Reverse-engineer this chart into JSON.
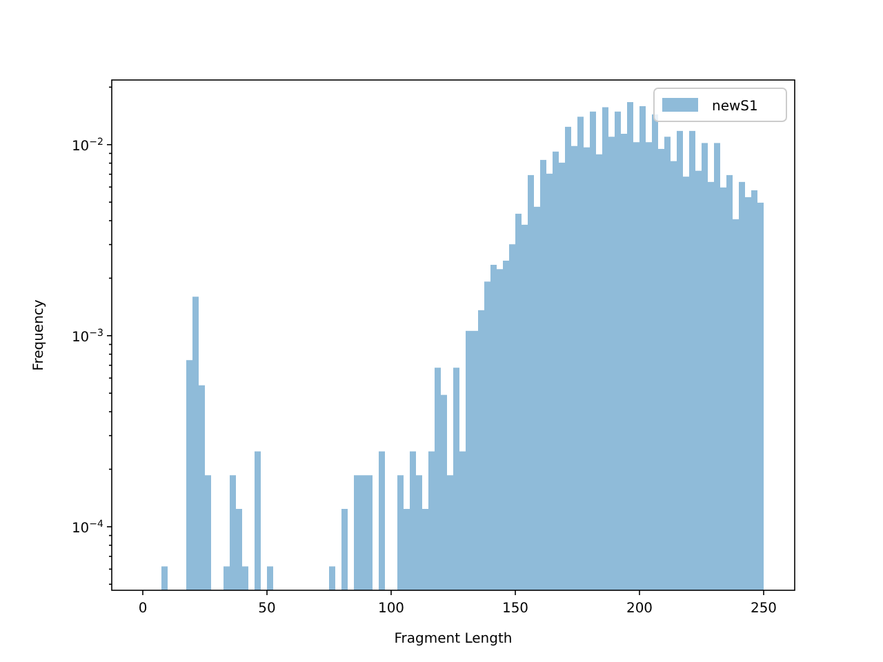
{
  "chart_data": {
    "type": "histogram",
    "xlabel": "Fragment Length",
    "ylabel": "Frequency",
    "log": "y",
    "legend": "top right",
    "bins": [
      7.5,
      10,
      17.5,
      20,
      22.5,
      25,
      27.5,
      32.5,
      35,
      37.5,
      40,
      42.5,
      45,
      47.5,
      50,
      52.5,
      75,
      77.5,
      80,
      82.5,
      85,
      87.5,
      90,
      92.5,
      95,
      97.5,
      102.5,
      105,
      107.5,
      110,
      112.5,
      115,
      117.5,
      120,
      122.5,
      125,
      127.5,
      130,
      132.5,
      135,
      137.5,
      140,
      142.5,
      145,
      147.5,
      150,
      152.5,
      155,
      157.5,
      160,
      162.5,
      165,
      167.5,
      170,
      172.5,
      175,
      177.5,
      180,
      182.5,
      185,
      187.5,
      190,
      192.5,
      195,
      197.5,
      200,
      202.5,
      205,
      207.5,
      210,
      212.5,
      215,
      217.5,
      220,
      222.5,
      225,
      227.5,
      230,
      232.5,
      235,
      237.5,
      240,
      242.5,
      245,
      247.5,
      250
    ],
    "series": [
      {
        "name": "newS1",
        "color": "#8fbbd9",
        "values": [
          6.2e-05,
          null,
          0.000745,
          0.0016,
          0.00055,
          0.000186,
          null,
          6.2e-05,
          0.000186,
          0.000124,
          6.2e-05,
          null,
          0.000248,
          null,
          6.2e-05,
          null,
          6.2e-05,
          null,
          0.000124,
          null,
          0.000186,
          0.000186,
          0.000186,
          null,
          0.000248,
          null,
          0.000186,
          0.000124,
          0.000248,
          0.000186,
          0.000124,
          0.000248,
          0.00068,
          0.00049,
          0.000186,
          0.00068,
          0.000248,
          0.00106,
          0.00106,
          0.00136,
          0.00192,
          0.00235,
          0.00223,
          0.00247,
          0.00301,
          0.00435,
          0.00381,
          0.00693,
          0.00473,
          0.00832,
          0.00705,
          0.0092,
          0.00805,
          0.0124,
          0.00984,
          0.014,
          0.00968,
          0.0149,
          0.0089,
          0.0157,
          0.011,
          0.0149,
          0.0114,
          0.0167,
          0.0103,
          0.0159,
          0.0103,
          0.0144,
          0.0095,
          0.011,
          0.0082,
          0.0118,
          0.0068,
          0.0118,
          0.0073,
          0.0102,
          0.00638,
          0.0102,
          0.00597,
          0.00693,
          0.00407,
          0.00638,
          0.00531,
          0.00577,
          0.00497
        ]
      }
    ],
    "xlim": [
      -12.5,
      262.5
    ],
    "xticks": [
      0,
      50,
      100,
      150,
      200,
      250
    ],
    "ylim": [
      4.65e-05,
      0.0218
    ],
    "yticks": [
      {
        "value": 5e-05,
        "label": null
      },
      {
        "value": 6e-05,
        "label": null
      },
      {
        "value": 7e-05,
        "label": null
      },
      {
        "value": 8e-05,
        "label": null
      },
      {
        "value": 9e-05,
        "label": null
      },
      {
        "value": 0.0001,
        "label": "10$^{−4}$"
      },
      {
        "value": 0.0002,
        "label": null
      },
      {
        "value": 0.0003,
        "label": null
      },
      {
        "value": 0.0004,
        "label": null
      },
      {
        "value": 0.0005,
        "label": null
      },
      {
        "value": 0.0006,
        "label": null
      },
      {
        "value": 0.0007,
        "label": null
      },
      {
        "value": 0.0008,
        "label": null
      },
      {
        "value": 0.0009,
        "label": null
      },
      {
        "value": 0.001,
        "label": "10$^{−3}$"
      },
      {
        "value": 0.002,
        "label": null
      },
      {
        "value": 0.003,
        "label": null
      },
      {
        "value": 0.004,
        "label": null
      },
      {
        "value": 0.005,
        "label": null
      },
      {
        "value": 0.006,
        "label": null
      },
      {
        "value": 0.007,
        "label": null
      },
      {
        "value": 0.008,
        "label": null
      },
      {
        "value": 0.009,
        "label": null
      },
      {
        "value": 0.01,
        "label": "10$^{−2}$"
      },
      {
        "value": 0.02,
        "label": null
      }
    ]
  }
}
